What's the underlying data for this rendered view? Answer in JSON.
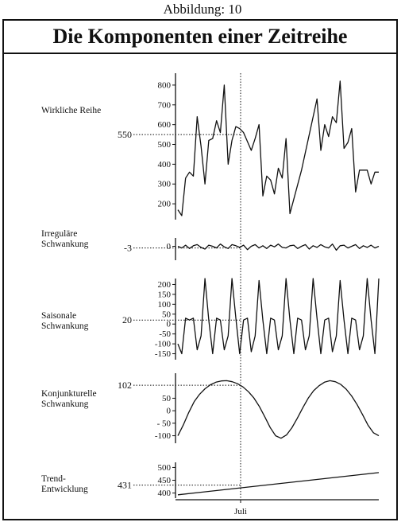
{
  "figure_heading": "Abbildung: 10",
  "title": "Die Komponenten einer Zeitreihe",
  "chart_data": {
    "type": "line",
    "x_marker": {
      "label": "Juli",
      "index": 21
    },
    "panels": [
      {
        "name": "wirkliche",
        "label_lines": [
          "Wirkliche Reihe"
        ],
        "yticks": [
          200,
          300,
          400,
          500,
          600,
          700,
          800
        ],
        "ytick_labels": [
          "200",
          "300",
          "400",
          "500",
          "600",
          "700",
          "800"
        ],
        "ylim": [
          120,
          860
        ],
        "reference": {
          "label": "550",
          "value": 550
        },
        "values": [
          170,
          140,
          330,
          360,
          340,
          640,
          490,
          300,
          520,
          530,
          620,
          560,
          800,
          400,
          520,
          590,
          580,
          560,
          null,
          470,
          530,
          600,
          240,
          340,
          320,
          250,
          380,
          330,
          530,
          150,
          null,
          null,
          370,
          null,
          null,
          null,
          730,
          470,
          600,
          540,
          640,
          610,
          820,
          480,
          510,
          580,
          260,
          370,
          370,
          370,
          300,
          360,
          360
        ]
      },
      {
        "name": "irregulaer",
        "label_lines": [
          "Irreguläre",
          "Schwankung"
        ],
        "yticks": [
          0
        ],
        "ytick_labels": [
          "0"
        ],
        "ylim": [
          -25,
          15
        ],
        "reference": {
          "label": "-3",
          "value": -3
        },
        "values": [
          0,
          -3,
          2,
          -4,
          1,
          3,
          -2,
          -5,
          2,
          0,
          -3,
          4,
          -1,
          -4,
          3,
          1,
          -2,
          2,
          -6,
          0,
          3,
          -3,
          1,
          -4,
          2,
          -1,
          4,
          -2,
          -3,
          1,
          2,
          -4,
          0,
          3,
          -5,
          1,
          -2,
          3,
          -1,
          -3,
          4,
          -7,
          1,
          2,
          -3,
          0,
          3,
          -4,
          1,
          -2,
          2,
          -3,
          0
        ]
      },
      {
        "name": "saisonal",
        "label_lines": [
          "Saisonale",
          "Schwankung"
        ],
        "yticks": [
          -150,
          -100,
          -50,
          0,
          50,
          100,
          150,
          200
        ],
        "ytick_labels": [
          "-150",
          "-100",
          "-50",
          "0",
          "50",
          "100",
          "150",
          "200"
        ],
        "ylim": [
          -180,
          230
        ],
        "reference": {
          "label": "20",
          "value": 20
        },
        "values": [
          -100,
          -150,
          30,
          20,
          30,
          -130,
          -60,
          230,
          20,
          -150,
          30,
          20,
          -130,
          -60,
          230,
          30,
          -150,
          20,
          30,
          -140,
          -60,
          220,
          20,
          -150,
          30,
          20,
          -130,
          -60,
          230,
          20,
          -150,
          30,
          20,
          -130,
          -60,
          230,
          30,
          -150,
          20,
          30,
          -140,
          -60,
          220,
          20,
          -150,
          30,
          20,
          -130,
          -60,
          230,
          20,
          -150,
          230
        ]
      },
      {
        "name": "konjunktur",
        "label_lines": [
          "Konjunkturelle",
          "Schwankung"
        ],
        "yticks": [
          -100,
          -50,
          0,
          50
        ],
        "ytick_labels": [
          "-100",
          "- 50",
          "0",
          "50"
        ],
        "ylim": [
          -130,
          150
        ],
        "reference": {
          "label": "102",
          "value": 102
        },
        "values": [
          -100,
          -57,
          -7,
          36,
          66,
          88,
          104,
          114,
          119,
          120,
          116,
          108,
          95,
          76,
          51,
          17,
          -24,
          -67,
          -100,
          -110,
          -97,
          -68,
          -30,
          12,
          50,
          80,
          100,
          114,
          120,
          116,
          105,
          86,
          59,
          25,
          -15,
          -57,
          -88,
          -100
        ]
      },
      {
        "name": "trend",
        "label_lines": [
          "Trend-",
          "Entwicklung"
        ],
        "yticks": [
          400,
          450,
          500
        ],
        "ytick_labels": [
          "400",
          "450",
          "500"
        ],
        "ylim": [
          380,
          520
        ],
        "reference": {
          "label": "431",
          "value": 431
        },
        "values": [
          393,
          480
        ]
      }
    ]
  }
}
